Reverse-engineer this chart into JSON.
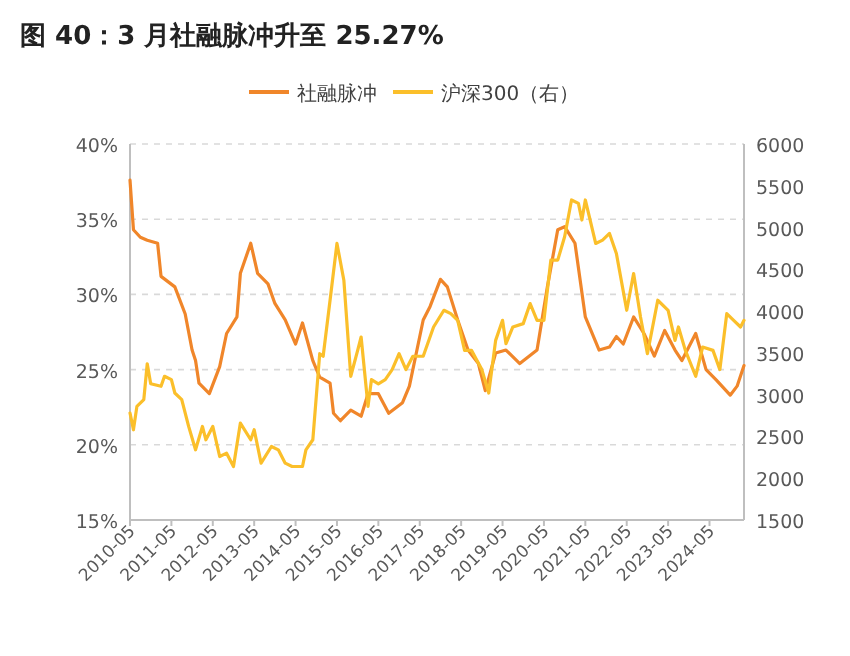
{
  "chart_data": {
    "type": "line",
    "title": "图 40：3 月社融脉冲升至 25.27%",
    "ylim": [
      15,
      40
    ],
    "yticks": [
      {
        "value": 15,
        "label": "15%"
      },
      {
        "value": 20,
        "label": "20%"
      },
      {
        "value": 25,
        "label": "25%"
      },
      {
        "value": 30,
        "label": "30%"
      },
      {
        "value": 35,
        "label": "35%"
      },
      {
        "value": 40,
        "label": "40%"
      }
    ],
    "y2lim": [
      1500,
      6000
    ],
    "y2ticks": [
      1500,
      2000,
      2500,
      3000,
      3500,
      4000,
      4500,
      5000,
      5500,
      6000
    ],
    "xlim": [
      "2010-05",
      "2025-03"
    ],
    "xticks": [
      "2010-05",
      "2011-05",
      "2012-05",
      "2013-05",
      "2014-05",
      "2015-05",
      "2016-05",
      "2017-05",
      "2018-05",
      "2019-05",
      "2020-05",
      "2021-05",
      "2022-05",
      "2023-05",
      "2024-05"
    ],
    "grid": "y",
    "legend": "top",
    "series": [
      {
        "name": "社融脉冲",
        "color": "#f0862a",
        "x": [
          "2010-05",
          "2010-06",
          "2010-08",
          "2010-10",
          "2011-01",
          "2011-02",
          "2011-06",
          "2011-09",
          "2011-11",
          "2011-12",
          "2012-01",
          "2012-04",
          "2012-07",
          "2012-09",
          "2012-12",
          "2013-01",
          "2013-04",
          "2013-06",
          "2013-09",
          "2013-11",
          "2014-02",
          "2014-05",
          "2014-07",
          "2014-10",
          "2014-12",
          "2015-03",
          "2015-04",
          "2015-06",
          "2015-09",
          "2015-12",
          "2016-02",
          "2016-05",
          "2016-08",
          "2016-12",
          "2017-02",
          "2017-06",
          "2017-08",
          "2017-11",
          "2018-01",
          "2018-04",
          "2018-07",
          "2018-10",
          "2018-12",
          "2019-03",
          "2019-06",
          "2019-10",
          "2020-03",
          "2020-06",
          "2020-09",
          "2020-11",
          "2021-02",
          "2021-05",
          "2021-09",
          "2021-12",
          "2022-02",
          "2022-04",
          "2022-07",
          "2022-10",
          "2023-01",
          "2023-04",
          "2023-07",
          "2023-09",
          "2024-01",
          "2024-04",
          "2024-07",
          "2024-11",
          "2025-01",
          "2025-03"
        ],
        "values": [
          37.6,
          34.3,
          33.8,
          33.6,
          33.4,
          31.2,
          30.5,
          28.7,
          26.3,
          25.6,
          24.1,
          23.4,
          25.2,
          27.4,
          28.5,
          31.4,
          33.4,
          31.4,
          30.7,
          29.4,
          28.3,
          26.7,
          28.1,
          25.6,
          24.5,
          24.1,
          22.1,
          21.6,
          22.3,
          21.9,
          23.4,
          23.4,
          22.1,
          22.8,
          23.9,
          28.3,
          29.2,
          31.0,
          30.5,
          28.3,
          26.3,
          25.4,
          23.6,
          26.1,
          26.3,
          25.4,
          26.3,
          30.5,
          34.3,
          34.5,
          33.4,
          28.5,
          26.3,
          26.5,
          27.2,
          26.7,
          28.5,
          27.4,
          25.9,
          27.6,
          26.3,
          25.6,
          27.4,
          25.0,
          24.3,
          23.3,
          23.9,
          25.27
        ]
      },
      {
        "name": "沪深300（右）",
        "color": "#fbbf2a",
        "axis": "y2",
        "x": [
          "2010-05",
          "2010-06",
          "2010-07",
          "2010-09",
          "2010-10",
          "2010-11",
          "2011-02",
          "2011-03",
          "2011-05",
          "2011-06",
          "2011-08",
          "2011-10",
          "2011-12",
          "2012-02",
          "2012-03",
          "2012-05",
          "2012-07",
          "2012-09",
          "2012-11",
          "2013-01",
          "2013-04",
          "2013-05",
          "2013-07",
          "2013-10",
          "2013-12",
          "2014-02",
          "2014-04",
          "2014-07",
          "2014-08",
          "2014-10",
          "2014-12",
          "2015-01",
          "2015-03",
          "2015-05",
          "2015-07",
          "2015-09",
          "2015-11",
          "2015-12",
          "2016-02",
          "2016-03",
          "2016-05",
          "2016-07",
          "2016-09",
          "2016-11",
          "2017-01",
          "2017-03",
          "2017-06",
          "2017-09",
          "2017-12",
          "2018-02",
          "2018-04",
          "2018-06",
          "2018-08",
          "2018-11",
          "2019-01",
          "2019-03",
          "2019-05",
          "2019-06",
          "2019-08",
          "2019-11",
          "2020-01",
          "2020-03",
          "2020-05",
          "2020-07",
          "2020-09",
          "2020-11",
          "2021-01",
          "2021-03",
          "2021-04",
          "2021-05",
          "2021-08",
          "2021-10",
          "2021-12",
          "2022-02",
          "2022-05",
          "2022-07",
          "2022-09",
          "2022-11",
          "2023-02",
          "2023-05",
          "2023-07",
          "2023-08",
          "2023-10",
          "2024-01",
          "2024-03",
          "2024-06",
          "2024-08",
          "2024-10",
          "2024-12",
          "2025-02",
          "2025-03"
        ],
        "values": [
          2780,
          2580,
          2860,
          2940,
          3370,
          3130,
          3100,
          3220,
          3180,
          3020,
          2940,
          2620,
          2340,
          2620,
          2460,
          2620,
          2260,
          2300,
          2140,
          2660,
          2460,
          2580,
          2180,
          2380,
          2340,
          2180,
          2140,
          2140,
          2340,
          2460,
          3490,
          3460,
          4130,
          4810,
          4370,
          3220,
          3530,
          3690,
          2860,
          3180,
          3130,
          3180,
          3300,
          3490,
          3300,
          3460,
          3460,
          3810,
          4010,
          3970,
          3890,
          3530,
          3530,
          3300,
          3020,
          3650,
          3890,
          3610,
          3810,
          3850,
          4090,
          3890,
          3890,
          4610,
          4610,
          4890,
          5330,
          5290,
          5090,
          5330,
          4810,
          4850,
          4930,
          4690,
          4010,
          4450,
          3930,
          3490,
          4130,
          4010,
          3650,
          3810,
          3530,
          3220,
          3570,
          3530,
          3300,
          3970,
          3890,
          3810,
          3890
        ]
      }
    ]
  }
}
